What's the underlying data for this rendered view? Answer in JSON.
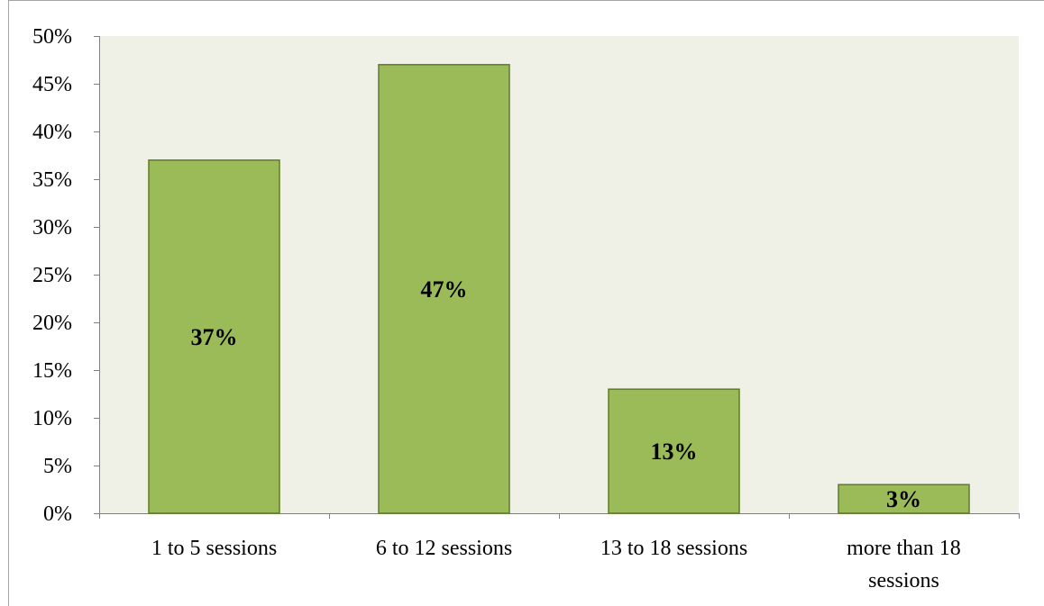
{
  "chart_data": {
    "type": "bar",
    "title": "",
    "xlabel": "",
    "ylabel": "",
    "categories": [
      [
        "1 to 5 sessions"
      ],
      [
        "6 to 12 sessions"
      ],
      [
        "13 to 18 sessions"
      ],
      [
        "more than 18",
        "sessions"
      ]
    ],
    "values": [
      37,
      47,
      13,
      3
    ],
    "data_labels": [
      "37%",
      "47%",
      "13%",
      "3%"
    ],
    "y_ticks": [
      "0%",
      "5%",
      "10%",
      "15%",
      "20%",
      "25%",
      "30%",
      "35%",
      "40%",
      "45%",
      "50%"
    ],
    "ylim": [
      0,
      50
    ],
    "grid": false,
    "legend": "none",
    "colors": {
      "bar_fill": "#9bbb59",
      "bar_stroke": "#5e7c2c",
      "plot_background": "#eff1e7",
      "axis": "#808080",
      "border": "#a6a6a6"
    }
  }
}
